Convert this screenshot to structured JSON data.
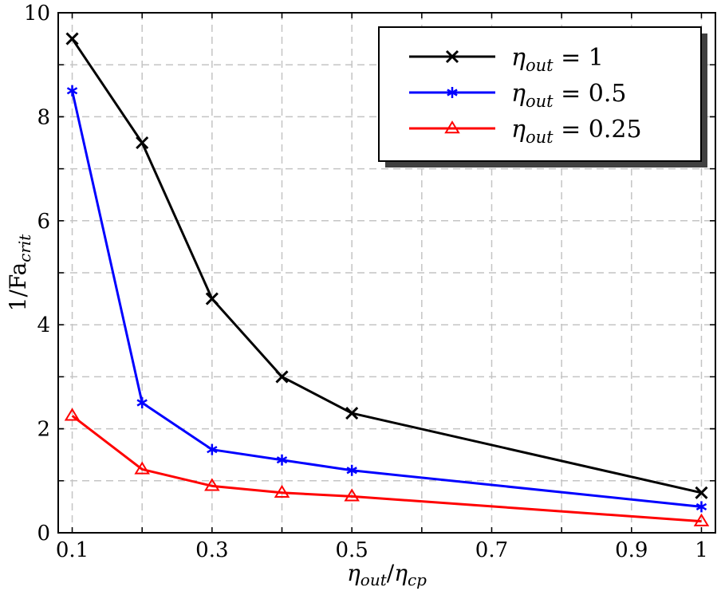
{
  "chart_data": {
    "type": "line",
    "title": "",
    "xlabel_parts": {
      "base1": "η",
      "sub1": "out",
      "sep": "/",
      "base2": "η",
      "sub2": "cp"
    },
    "ylabel_parts": {
      "base": "1/Fa",
      "sub": "crit"
    },
    "xlim": [
      0.08,
      1.02
    ],
    "ylim": [
      0,
      10
    ],
    "x_ticks": [
      0.1,
      0.3,
      0.5,
      0.7,
      0.9,
      1
    ],
    "x_tick_labels": [
      "0.1",
      "0.3",
      "0.5",
      "0.7",
      "0.9",
      "1"
    ],
    "x_grid": [
      0.1,
      0.2,
      0.3,
      0.4,
      0.5,
      0.6,
      0.7,
      0.8,
      0.9,
      1
    ],
    "y_ticks": [
      0,
      2,
      4,
      6,
      8,
      10
    ],
    "y_tick_labels": [
      "0",
      "2",
      "4",
      "6",
      "8",
      "10"
    ],
    "y_grid": [
      1,
      2,
      3,
      4,
      5,
      6,
      7,
      8,
      9
    ],
    "grid": true,
    "legend_position": "top-right",
    "series": [
      {
        "name_parts": {
          "base": "η",
          "sub": "out",
          "rest": " = 1"
        },
        "color": "#000000",
        "marker": "x",
        "x": [
          0.1,
          0.2,
          0.3,
          0.4,
          0.5,
          1
        ],
        "values": [
          9.5,
          7.5,
          4.5,
          3.0,
          2.3,
          0.77
        ]
      },
      {
        "name_parts": {
          "base": "η",
          "sub": "out",
          "rest": " = 0.5"
        },
        "color": "#0000ff",
        "marker": "asterisk",
        "x": [
          0.1,
          0.2,
          0.3,
          0.4,
          0.5,
          1
        ],
        "values": [
          8.5,
          2.5,
          1.6,
          1.4,
          1.2,
          0.5
        ]
      },
      {
        "name_parts": {
          "base": "η",
          "sub": "out",
          "rest": " = 0.25"
        },
        "color": "#ff0000",
        "marker": "triangle",
        "x": [
          0.1,
          0.2,
          0.3,
          0.4,
          0.5,
          1
        ],
        "values": [
          2.25,
          1.22,
          0.9,
          0.77,
          0.7,
          0.22
        ]
      }
    ]
  }
}
